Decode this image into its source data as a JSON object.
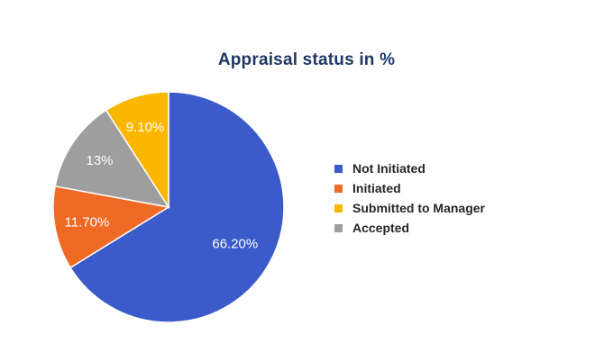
{
  "chart_data": {
    "type": "pie",
    "title": "Appraisal status in %",
    "categories": [
      "Not Initiated",
      "Initiated",
      "Submitted to Manager",
      "Accepted"
    ],
    "values": [
      66.2,
      11.7,
      9.1,
      13
    ],
    "value_labels": [
      "66.20%",
      "11.70%",
      "9.10%",
      "13%"
    ],
    "colors": [
      "#3a5bc9",
      "#ef6a25",
      "#fbb600",
      "#9e9e9e"
    ],
    "legend_position": "right",
    "slice_order_clockwise_from_top": [
      "Not Initiated",
      "Initiated",
      "Accepted",
      "Submitted to Manager"
    ]
  }
}
